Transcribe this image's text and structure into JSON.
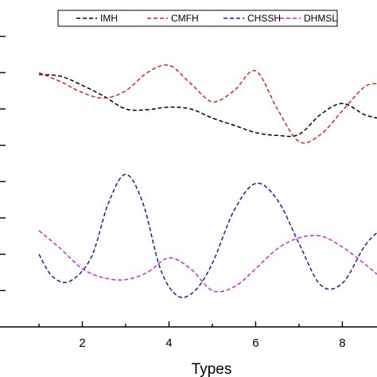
{
  "chart_data": {
    "type": "line",
    "xlabel": "Types",
    "ylabel": "",
    "xlim": [
      0.1,
      8.8
    ],
    "ylim": [
      0,
      9
    ],
    "x_ticks": [
      2,
      4,
      6,
      8
    ],
    "x_tick_labels": [
      "2",
      "4",
      "6",
      "8"
    ],
    "legend": {
      "placement": "top"
    },
    "series": [
      {
        "name": "IMH",
        "color": "#000000",
        "x": [
          1,
          1.5,
          2,
          2.5,
          3,
          3.5,
          4,
          4.5,
          5,
          5.5,
          6,
          6.5,
          7,
          7.5,
          8,
          8.5,
          8.8
        ],
        "y": [
          6.95,
          6.9,
          6.65,
          6.35,
          6.0,
          5.98,
          6.05,
          6.0,
          5.75,
          5.55,
          5.35,
          5.27,
          5.3,
          5.85,
          6.15,
          5.85,
          5.75
        ]
      },
      {
        "name": "CMFH",
        "color": "#e0251b",
        "x": [
          1,
          1.5,
          2,
          2.5,
          3,
          3.5,
          4,
          4.5,
          5,
          5.5,
          6,
          6.5,
          7,
          7.5,
          8,
          8.5,
          8.8
        ],
        "y": [
          7.0,
          6.75,
          6.45,
          6.3,
          6.5,
          7.0,
          7.2,
          6.7,
          6.2,
          6.5,
          7.05,
          6.0,
          5.1,
          5.3,
          5.95,
          6.6,
          6.7
        ]
      },
      {
        "name": "CHSSH",
        "color": "#1a1aa8",
        "x": [
          1,
          1.3,
          1.7,
          2.2,
          2.6,
          3.0,
          3.4,
          3.8,
          4.2,
          4.6,
          5.0,
          5.5,
          6.0,
          6.5,
          7.0,
          7.5,
          8.0,
          8.5,
          8.8
        ],
        "y": [
          2.0,
          1.4,
          1.25,
          1.9,
          3.4,
          4.2,
          3.4,
          1.6,
          0.85,
          1.0,
          1.75,
          3.2,
          3.95,
          3.5,
          2.3,
          1.15,
          1.2,
          2.2,
          2.6
        ]
      },
      {
        "name": "DHMSL",
        "color": "#e020e0",
        "x": [
          1,
          1.5,
          2,
          2.5,
          3,
          3.5,
          4,
          4.5,
          5,
          5.5,
          6,
          6.5,
          7,
          7.5,
          8,
          8.5,
          8.8
        ],
        "y": [
          2.65,
          2.15,
          1.6,
          1.35,
          1.3,
          1.5,
          1.9,
          1.6,
          1.0,
          1.1,
          1.6,
          2.15,
          2.45,
          2.5,
          2.2,
          1.75,
          1.45
        ]
      }
    ]
  }
}
